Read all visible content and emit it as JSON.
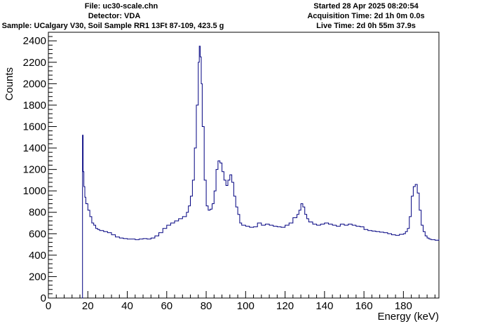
{
  "header": {
    "file": "File: uc30-scale.chn",
    "detector": "Detector: VDA",
    "sample": "Sample: UCalgary V30, Soil Sample RR1 13Ft 87-109, 423.5 g",
    "started": "Started 28 Apr 2025 08:20:54",
    "acq_time": "Acquisition Time: 2d 1h 0m 0.0s",
    "live_time": "Live Time: 2d 0h 55m 37.9s"
  },
  "chart_data": {
    "type": "line",
    "title": "",
    "xlabel": "Energy (keV)",
    "ylabel": "Counts",
    "xlim": [
      0,
      198
    ],
    "ylim": [
      0,
      2480
    ],
    "xticks": [
      0,
      20,
      40,
      60,
      80,
      100,
      120,
      140,
      160,
      180
    ],
    "xtick_labels": [
      "0",
      "20",
      "40",
      "60",
      "80",
      "100",
      "120",
      "140",
      "160",
      "180"
    ],
    "yticks": [
      0,
      200,
      400,
      600,
      800,
      1000,
      1200,
      1400,
      1600,
      1800,
      2000,
      2200,
      2400
    ],
    "ytick_labels": [
      "0",
      "200",
      "400",
      "600",
      "800",
      "1000",
      "1200",
      "1400",
      "1600",
      "1800",
      "2000",
      "2200",
      "2400"
    ],
    "line_color": "#000080",
    "series": [
      {
        "x": [
          17.0,
          17.3,
          17.6,
          18.0,
          18.5,
          19,
          20,
          21,
          22,
          23,
          24,
          25,
          26,
          28,
          30,
          32,
          34,
          36,
          38,
          40,
          42,
          44,
          46,
          48,
          50,
          52,
          54,
          56,
          58,
          60,
          62,
          64,
          66,
          68,
          70,
          71,
          72,
          73,
          74,
          75,
          76,
          76.5,
          77,
          77.5,
          78,
          79,
          80,
          81,
          82,
          83,
          84,
          85,
          86,
          87,
          88,
          89,
          90,
          91,
          92,
          93,
          94,
          95,
          96,
          97,
          98,
          100,
          102,
          104,
          106,
          108,
          110,
          112,
          114,
          116,
          118,
          120,
          122,
          124,
          126,
          127,
          128,
          129,
          130,
          131,
          132,
          134,
          136,
          138,
          140,
          142,
          144,
          146,
          148,
          150,
          152,
          154,
          156,
          158,
          160,
          162,
          164,
          166,
          168,
          170,
          172,
          174,
          176,
          178,
          180,
          181,
          182,
          183,
          184,
          185,
          186,
          187,
          188,
          189,
          190,
          191,
          192,
          193,
          194,
          196,
          198
        ],
        "values": [
          0,
          1520,
          1180,
          1040,
          940,
          880,
          820,
          760,
          700,
          680,
          650,
          640,
          630,
          620,
          610,
          590,
          570,
          560,
          555,
          550,
          550,
          545,
          550,
          555,
          550,
          560,
          580,
          610,
          650,
          680,
          700,
          720,
          740,
          760,
          800,
          860,
          950,
          1100,
          1400,
          1800,
          2200,
          2350,
          2250,
          2000,
          1600,
          1100,
          860,
          820,
          830,
          880,
          1000,
          1200,
          1280,
          1260,
          1180,
          1100,
          1050,
          1100,
          1150,
          1080,
          950,
          850,
          780,
          700,
          680,
          670,
          660,
          665,
          700,
          680,
          690,
          680,
          670,
          665,
          660,
          680,
          700,
          750,
          780,
          820,
          880,
          850,
          780,
          740,
          710,
          690,
          680,
          690,
          700,
          690,
          680,
          670,
          690,
          680,
          690,
          680,
          670,
          665,
          640,
          630,
          625,
          620,
          615,
          610,
          600,
          590,
          585,
          595,
          600,
          620,
          650,
          760,
          950,
          1040,
          1060,
          980,
          820,
          680,
          620,
          580,
          560,
          550,
          545,
          540,
          550
        ]
      }
    ]
  }
}
